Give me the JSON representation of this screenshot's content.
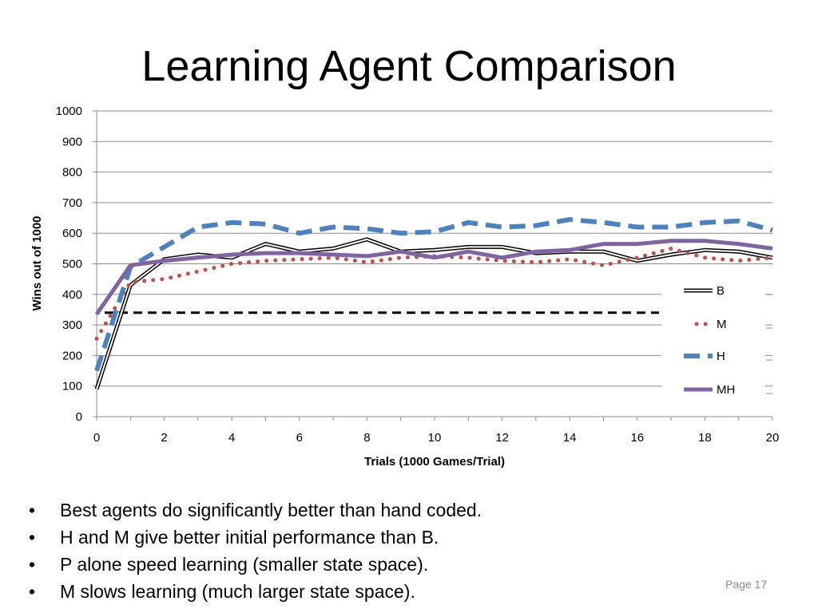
{
  "slide": {
    "title": "Learning Agent Comparison",
    "bullets": [
      "Best agents do significantly better than hand coded.",
      "H and M give better initial performance than B.",
      "P alone speed learning (smaller state space).",
      "M slows learning (much larger state space)."
    ],
    "bullet_symbol": "•",
    "page_label": "Page 17"
  },
  "chart_data": {
    "type": "line",
    "title": "",
    "xlabel": "Trials (1000 Games/Trial)",
    "ylabel": "Wins out of 1000",
    "xlim": [
      0,
      20
    ],
    "ylim": [
      0,
      1000
    ],
    "x_ticks": [
      0,
      2,
      4,
      6,
      8,
      10,
      12,
      14,
      16,
      18,
      20
    ],
    "y_ticks": [
      0,
      100,
      200,
      300,
      400,
      500,
      600,
      700,
      800,
      900,
      1000
    ],
    "grid": "horizontal",
    "legend_position": "right",
    "x": [
      0,
      1,
      2,
      3,
      4,
      5,
      6,
      7,
      8,
      9,
      10,
      11,
      12,
      13,
      14,
      15,
      16,
      17,
      18,
      19,
      20
    ],
    "series": [
      {
        "name": "B",
        "style": "double-line",
        "color": "#000000",
        "values": [
          90,
          430,
          515,
          530,
          520,
          565,
          540,
          550,
          580,
          540,
          545,
          555,
          555,
          535,
          540,
          540,
          510,
          530,
          545,
          540,
          520
        ]
      },
      {
        "name": "M",
        "style": "dotted",
        "color": "#c0504d",
        "values": [
          255,
          440,
          450,
          475,
          500,
          510,
          515,
          520,
          505,
          520,
          525,
          520,
          510,
          505,
          515,
          495,
          520,
          550,
          520,
          510,
          520
        ]
      },
      {
        "name": "H",
        "style": "dashed",
        "color": "#4f81bd",
        "values": [
          150,
          490,
          555,
          620,
          635,
          630,
          600,
          620,
          615,
          600,
          605,
          635,
          620,
          625,
          645,
          635,
          620,
          620,
          635,
          640,
          610
        ]
      },
      {
        "name": "MH",
        "style": "solid-thick",
        "color": "#8064a2",
        "values": [
          335,
          495,
          510,
          520,
          530,
          535,
          535,
          530,
          525,
          540,
          520,
          540,
          520,
          540,
          545,
          565,
          565,
          575,
          575,
          565,
          550
        ]
      }
    ],
    "reference_line": {
      "y": 340,
      "style": "dashed",
      "color": "#000000"
    }
  }
}
